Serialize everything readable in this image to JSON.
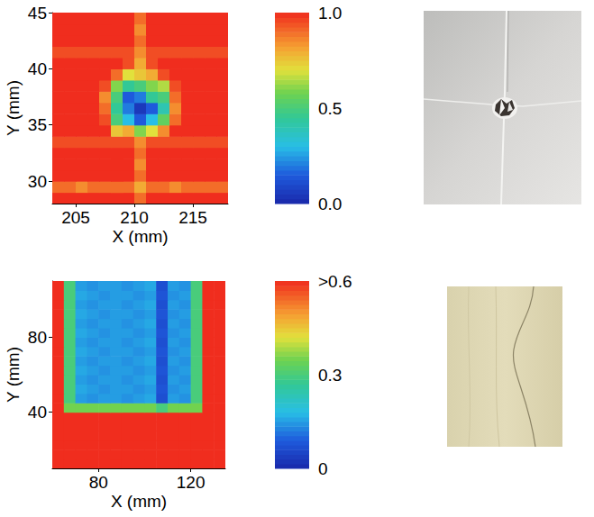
{
  "chart_data": [
    {
      "type": "heatmap",
      "x_label": "X (mm)",
      "y_label": "Y (mm)",
      "xlim": [
        203,
        218
      ],
      "ylim": [
        28,
        45
      ],
      "xticks": [
        205,
        210,
        215
      ],
      "yticks": [
        30,
        35,
        40,
        45
      ],
      "grid": false,
      "cells": {
        "x": [
          203.5,
          204.5,
          205.5,
          206.5,
          207.5,
          208.5,
          209.5,
          210.5,
          211.5,
          212.5,
          213.5,
          214.5,
          215.5,
          216.5,
          217.5
        ],
        "y": [
          28.5,
          29.5,
          30.5,
          31.5,
          32.5,
          33.5,
          34.5,
          35.5,
          36.5,
          37.5,
          38.5,
          39.5,
          40.5,
          41.5,
          42.5,
          43.5,
          44.5
        ],
        "values": [
          [
            1,
            1,
            1,
            1,
            1,
            1,
            1,
            0.9,
            1,
            1,
            1,
            1,
            1,
            1,
            1
          ],
          [
            0.9,
            0.9,
            0.85,
            0.9,
            0.9,
            0.9,
            0.9,
            0.8,
            0.9,
            0.9,
            0.85,
            0.9,
            0.9,
            0.9,
            0.9
          ],
          [
            1,
            1,
            1,
            1,
            1,
            1,
            1,
            0.9,
            1,
            1,
            1,
            1,
            1,
            1,
            1
          ],
          [
            1,
            1,
            1,
            1,
            1,
            1,
            1,
            0.85,
            1,
            1,
            1,
            1,
            1,
            1,
            1
          ],
          [
            1,
            1,
            1,
            1,
            1,
            1,
            1,
            0.9,
            1,
            1,
            1,
            1,
            1,
            1,
            1
          ],
          [
            0.95,
            0.95,
            0.95,
            0.95,
            0.95,
            0.95,
            0.95,
            0.85,
            0.95,
            0.95,
            0.95,
            0.95,
            0.95,
            0.95,
            0.95
          ],
          [
            1,
            1,
            1,
            1,
            1,
            0.75,
            0.8,
            0.6,
            0.7,
            0.85,
            1,
            1,
            1,
            1,
            1
          ],
          [
            1,
            1,
            1,
            1,
            0.95,
            0.5,
            0.3,
            0.15,
            0.3,
            0.55,
            0.9,
            1,
            1,
            1,
            1
          ],
          [
            1,
            1,
            1,
            1,
            0.9,
            0.45,
            0.2,
            0.05,
            0.15,
            0.4,
            0.85,
            1,
            1,
            1,
            1
          ],
          [
            1,
            1,
            1,
            1,
            0.85,
            0.5,
            0.15,
            0.2,
            0.45,
            0.5,
            0.9,
            1,
            1,
            1,
            1
          ],
          [
            1,
            1,
            1,
            1,
            0.95,
            0.6,
            0.45,
            0.5,
            0.6,
            0.65,
            0.95,
            1,
            1,
            1,
            1
          ],
          [
            1,
            1,
            1,
            1,
            1,
            0.9,
            0.7,
            0.75,
            0.8,
            0.95,
            1,
            1,
            1,
            1,
            1
          ],
          [
            1,
            1,
            1,
            1,
            1,
            1,
            0.95,
            0.8,
            0.95,
            1,
            1,
            1,
            1,
            1,
            1
          ],
          [
            0.95,
            0.95,
            0.95,
            0.95,
            0.95,
            0.95,
            0.95,
            0.85,
            0.95,
            0.95,
            0.95,
            0.95,
            0.95,
            0.95,
            0.95
          ],
          [
            1,
            1,
            1,
            1,
            1,
            1,
            1,
            0.9,
            1,
            1,
            1,
            1,
            1,
            1,
            1
          ],
          [
            1,
            1,
            1,
            1,
            1,
            1,
            1,
            0.85,
            1,
            1,
            1,
            1,
            1,
            1,
            1
          ],
          [
            1,
            1,
            1,
            1,
            1,
            1,
            1,
            0.9,
            1,
            1,
            1,
            1,
            1,
            1,
            1
          ]
        ]
      },
      "colorbar": {
        "lim": [
          0,
          1
        ],
        "ticks": [
          {
            "value": 0,
            "label": "0.0"
          },
          {
            "value": 0.5,
            "label": "0.5"
          },
          {
            "value": 1,
            "label": "1.0"
          }
        ]
      }
    },
    {
      "type": "heatmap",
      "x_label": "X (mm)",
      "y_label": "Y (mm)",
      "xlim": [
        60,
        135
      ],
      "ylim": [
        10,
        110
      ],
      "xticks": [
        80,
        120
      ],
      "yticks": [
        40,
        80
      ],
      "grid": false,
      "cells": {
        "x": [
          62.5,
          67.5,
          72.5,
          77.5,
          82.5,
          87.5,
          92.5,
          97.5,
          102.5,
          107.5,
          112.5,
          117.5,
          122.5,
          127.5,
          132.5
        ],
        "y": [
          12.5,
          17.5,
          22.5,
          27.5,
          32.5,
          37.5,
          42.5,
          47.5,
          52.5,
          57.5,
          62.5,
          67.5,
          72.5,
          77.5,
          82.5,
          87.5,
          92.5,
          97.5,
          102.5,
          107.5
        ],
        "values": [
          [
            0.8,
            0.8,
            0.8,
            0.8,
            0.8,
            0.8,
            0.8,
            0.8,
            0.8,
            0.8,
            0.8,
            0.8,
            0.8,
            0.8,
            0.8
          ],
          [
            0.8,
            0.8,
            0.8,
            0.8,
            0.8,
            0.8,
            0.8,
            0.8,
            0.8,
            0.8,
            0.8,
            0.8,
            0.8,
            0.8,
            0.8
          ],
          [
            0.8,
            0.8,
            0.8,
            0.8,
            0.8,
            0.8,
            0.8,
            0.8,
            0.8,
            0.8,
            0.8,
            0.8,
            0.8,
            0.8,
            0.8
          ],
          [
            0.8,
            0.8,
            0.8,
            0.8,
            0.8,
            0.8,
            0.8,
            0.8,
            0.8,
            0.8,
            0.8,
            0.8,
            0.8,
            0.8,
            0.8
          ],
          [
            0.8,
            0.8,
            0.8,
            0.8,
            0.8,
            0.8,
            0.8,
            0.8,
            0.8,
            0.8,
            0.8,
            0.8,
            0.8,
            0.8,
            0.8
          ],
          [
            0.8,
            0.8,
            0.8,
            0.8,
            0.8,
            0.8,
            0.8,
            0.8,
            0.8,
            0.8,
            0.8,
            0.8,
            0.8,
            0.8,
            0.8
          ],
          [
            0.8,
            0.35,
            0.35,
            0.35,
            0.35,
            0.35,
            0.35,
            0.35,
            0.35,
            0.3,
            0.35,
            0.35,
            0.35,
            0.8,
            0.8
          ],
          [
            0.8,
            0.3,
            0.15,
            0.14,
            0.15,
            0.15,
            0.14,
            0.15,
            0.16,
            0.07,
            0.15,
            0.14,
            0.3,
            0.8,
            0.8
          ],
          [
            0.8,
            0.3,
            0.16,
            0.15,
            0.14,
            0.15,
            0.15,
            0.14,
            0.15,
            0.08,
            0.14,
            0.15,
            0.3,
            0.8,
            0.8
          ],
          [
            0.8,
            0.3,
            0.15,
            0.14,
            0.15,
            0.15,
            0.14,
            0.15,
            0.16,
            0.07,
            0.15,
            0.14,
            0.3,
            0.8,
            0.8
          ],
          [
            0.8,
            0.3,
            0.16,
            0.15,
            0.14,
            0.15,
            0.15,
            0.14,
            0.15,
            0.08,
            0.14,
            0.15,
            0.3,
            0.8,
            0.8
          ],
          [
            0.8,
            0.3,
            0.15,
            0.14,
            0.15,
            0.15,
            0.14,
            0.15,
            0.16,
            0.07,
            0.15,
            0.14,
            0.3,
            0.8,
            0.8
          ],
          [
            0.8,
            0.3,
            0.16,
            0.15,
            0.14,
            0.15,
            0.15,
            0.14,
            0.15,
            0.08,
            0.14,
            0.15,
            0.3,
            0.8,
            0.8
          ],
          [
            0.8,
            0.3,
            0.15,
            0.14,
            0.15,
            0.15,
            0.14,
            0.15,
            0.16,
            0.07,
            0.15,
            0.14,
            0.3,
            0.8,
            0.8
          ],
          [
            0.8,
            0.3,
            0.16,
            0.15,
            0.14,
            0.15,
            0.15,
            0.14,
            0.15,
            0.08,
            0.14,
            0.15,
            0.3,
            0.8,
            0.8
          ],
          [
            0.8,
            0.3,
            0.15,
            0.14,
            0.15,
            0.15,
            0.14,
            0.15,
            0.16,
            0.07,
            0.15,
            0.14,
            0.3,
            0.8,
            0.8
          ],
          [
            0.8,
            0.3,
            0.16,
            0.15,
            0.14,
            0.15,
            0.15,
            0.14,
            0.15,
            0.08,
            0.14,
            0.15,
            0.3,
            0.8,
            0.8
          ],
          [
            0.8,
            0.3,
            0.15,
            0.14,
            0.15,
            0.15,
            0.14,
            0.15,
            0.16,
            0.07,
            0.15,
            0.14,
            0.3,
            0.8,
            0.8
          ],
          [
            0.8,
            0.3,
            0.16,
            0.15,
            0.14,
            0.15,
            0.15,
            0.14,
            0.15,
            0.08,
            0.14,
            0.15,
            0.3,
            0.8,
            0.8
          ],
          [
            0.8,
            0.3,
            0.15,
            0.14,
            0.15,
            0.15,
            0.14,
            0.15,
            0.16,
            0.07,
            0.15,
            0.14,
            0.3,
            0.8,
            0.8
          ]
        ]
      },
      "colorbar": {
        "lim": [
          0,
          0.6
        ],
        "ticks": [
          0,
          0.3,
          {
            "value": 0.6,
            "label": ">0.6"
          }
        ]
      }
    }
  ]
}
